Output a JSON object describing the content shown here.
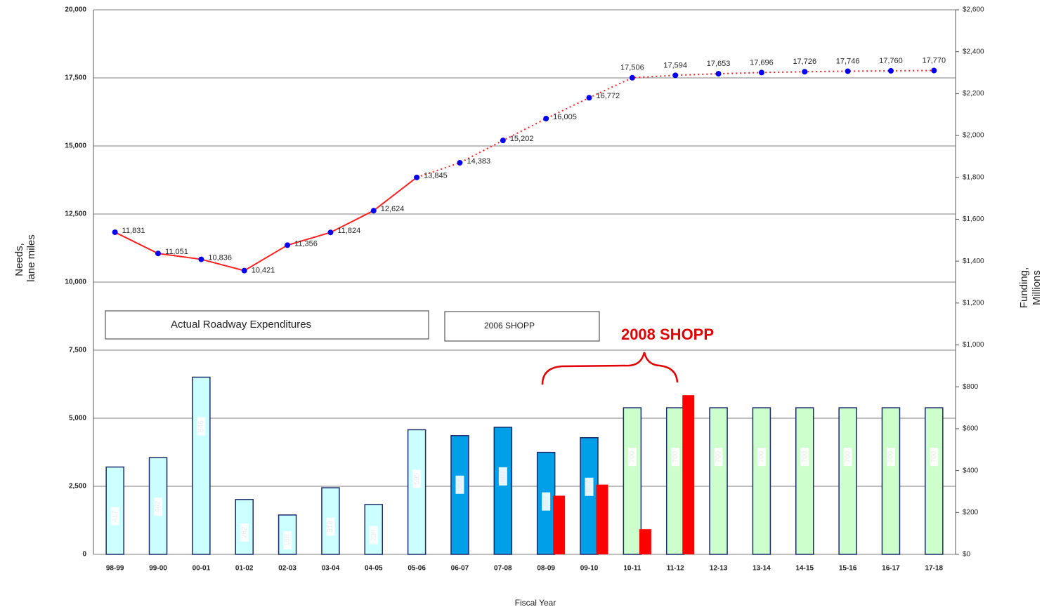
{
  "chart_data": {
    "type": "bar_line",
    "categories": [
      "98-99",
      "99-00",
      "00-01",
      "01-02",
      "02-03",
      "03-04",
      "04-05",
      "05-06",
      "06-07",
      "07-08",
      "08-09",
      "09-10",
      "10-11",
      "11-12",
      "12-13",
      "13-14",
      "14-15",
      "15-16",
      "16-17",
      "17-18"
    ],
    "series": [
      {
        "type": "line",
        "color": "#ff2020",
        "marker_color": "#0000ee",
        "line_dash_start": 7,
        "values": [
          11831,
          11051,
          10836,
          10421,
          11356,
          11824,
          12624,
          13845,
          14383,
          15202,
          16005,
          16772,
          17506,
          17594,
          17653,
          17696,
          17726,
          17746,
          17760,
          17770
        ],
        "value_labels": [
          "11,831",
          "11,051",
          "10,836",
          "10,421",
          "11,356",
          "11,824",
          "12,624",
          "13,845",
          "14,383",
          "15,202",
          "16,005",
          "16,772",
          "17,506",
          "17,594",
          "17,653",
          "17,696",
          "17,726",
          "17,746",
          "17,760",
          "17,770"
        ]
      },
      {
        "type": "bar",
        "axis": "y2",
        "colors": [
          "#ccffff",
          "#ccffff",
          "#ccffff",
          "#ccffff",
          "#ccffff",
          "#ccffff",
          "#ccffff",
          "#ccffff",
          "#00a0e8",
          "#00a0e8",
          "#00a0e8",
          "#00a0e8",
          "#ccffcc",
          "#ccffcc",
          "#ccffcc",
          "#ccffcc",
          "#ccffcc",
          "#ccffcc",
          "#ccffcc",
          "#ccffcc"
        ],
        "values": [
          417,
          462,
          846,
          262,
          188,
          318,
          238,
          595,
          567,
          607,
          487,
          557,
          700,
          700,
          700,
          700,
          700,
          700,
          700,
          700
        ]
      },
      {
        "type": "bar",
        "axis": "y2",
        "color": "#ff0000",
        "values": [
          null,
          null,
          null,
          null,
          null,
          null,
          null,
          null,
          null,
          null,
          280,
          333,
          120,
          760,
          null,
          null,
          null,
          null,
          null,
          null
        ]
      }
    ],
    "ylabel": [
      "Needs,",
      "lane miles"
    ],
    "y2label": [
      "Funding,",
      "Millions"
    ],
    "xlabel": "Fiscal Year",
    "ylim": [
      0,
      20000
    ],
    "yticks": [
      0,
      {
        "value": 2500,
        "label": "2,500"
      },
      {
        "value": 5000,
        "label": "5,000"
      },
      {
        "value": 7500,
        "label": "7,500"
      },
      {
        "value": 10000,
        "label": "10,000"
      },
      {
        "value": 12500,
        "label": "12,500"
      },
      {
        "value": 15000,
        "label": "15,000"
      },
      {
        "value": 17500,
        "label": "17,500"
      },
      {
        "value": 20000,
        "label": "20,000"
      }
    ],
    "y2lim": [
      0,
      2600
    ],
    "y2ticks": [
      {
        "value": 0,
        "label": "$0"
      },
      {
        "value": 200,
        "label": "$200"
      },
      {
        "value": 400,
        "label": "$400"
      },
      {
        "value": 600,
        "label": "$600"
      },
      {
        "value": 800,
        "label": "$800"
      },
      {
        "value": 1000,
        "label": "$1,000"
      },
      {
        "value": 1200,
        "label": "$1,200"
      },
      {
        "value": 1400,
        "label": "$1,400"
      },
      {
        "value": 1600,
        "label": "$1,600"
      },
      {
        "value": 1800,
        "label": "$1,800"
      },
      {
        "value": 2000,
        "label": "$2,000"
      },
      {
        "value": 2200,
        "label": "$2,200"
      },
      {
        "value": 2400,
        "label": "$2,400"
      },
      {
        "value": 2600,
        "label": "$2,600"
      }
    ],
    "grid": true,
    "legend_boxes": [
      "Actual Roadway Expenditures",
      "2006 SHOPP"
    ],
    "annotation": "2008 SHOPP"
  }
}
